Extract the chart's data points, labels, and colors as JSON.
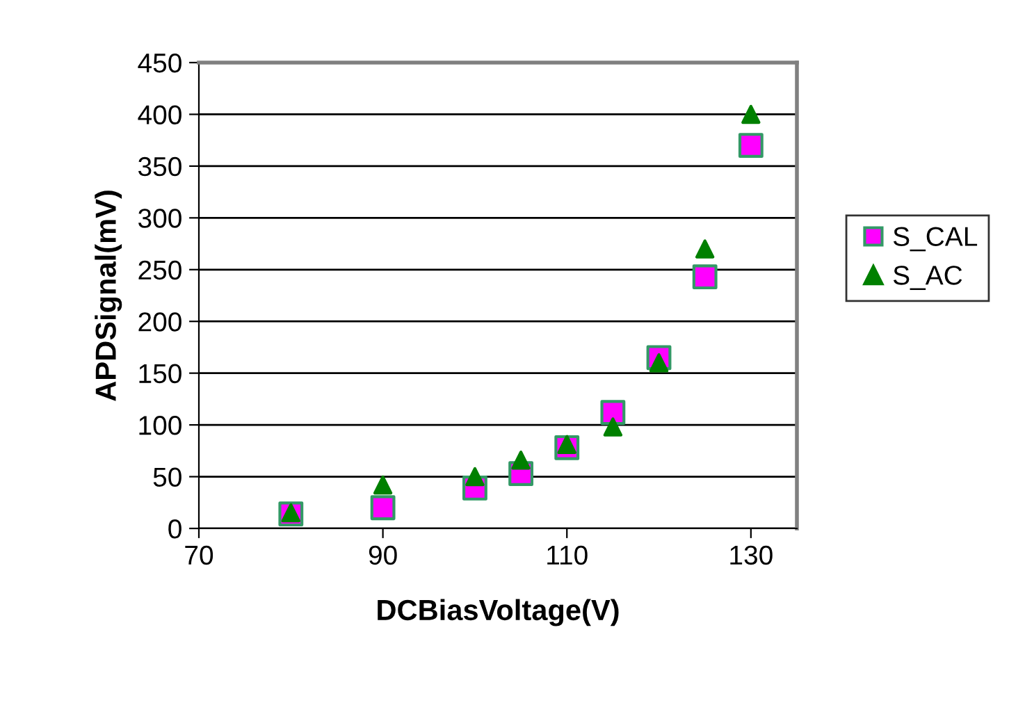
{
  "chart_data": {
    "type": "scatter",
    "xlabel": "DCBiasVoltage(V)",
    "ylabel": "APDSignal(mV)",
    "x": [
      80,
      90,
      100,
      105,
      110,
      115,
      120,
      125,
      130
    ],
    "series": [
      {
        "name": "S_CAL",
        "color": "#ff00ff",
        "marker": "square",
        "values": [
          14,
          20,
          39,
          53,
          78,
          112,
          165,
          243,
          370
        ]
      },
      {
        "name": "S_AC",
        "color": "#008000",
        "marker": "triangle",
        "values": [
          15,
          42,
          50,
          66,
          81,
          98,
          160,
          270,
          400
        ]
      }
    ],
    "xlim": [
      70,
      135
    ],
    "xticks": [
      70,
      90,
      110,
      130
    ],
    "ylim": [
      0,
      450
    ],
    "yticks": [
      0,
      50,
      100,
      150,
      200,
      250,
      300,
      350,
      400,
      450
    ],
    "grid": "y",
    "legend": "right"
  }
}
